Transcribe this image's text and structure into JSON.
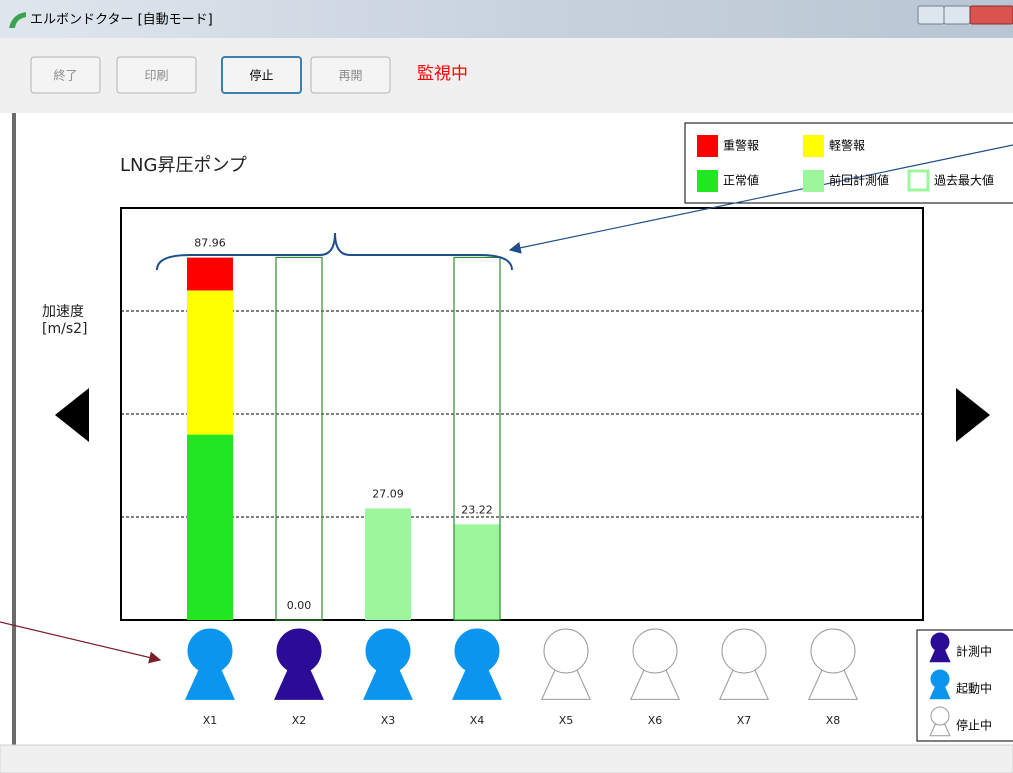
{
  "window": {
    "title": "エルボンドクター [自動モード]"
  },
  "toolbar": {
    "buttons": [
      "終了",
      "印刷",
      "停止",
      "再開"
    ],
    "status": "監視中"
  },
  "sensor_legend": [
    {
      "label": "計測中",
      "color": "#2b0c96"
    },
    {
      "label": "起動中",
      "color": "#0b95ef"
    },
    {
      "label": "停止中",
      "color": "#ffffff"
    }
  ],
  "chart_data": {
    "type": "bar",
    "title": "LNG昇圧ポンプ",
    "y_label": [
      "加速度",
      "[m/s2]"
    ],
    "categories": [
      "X1",
      "X2",
      "X3",
      "X4",
      "X5",
      "X6",
      "X7",
      "X8"
    ],
    "series": [
      {
        "name": "重警報",
        "color": "#ff0000",
        "style": "fill",
        "values": [
          7.96,
          null,
          null,
          null,
          null,
          null,
          null,
          null
        ]
      },
      {
        "name": "軽警報",
        "color": "#ffff00",
        "style": "fill",
        "values": [
          35,
          null,
          null,
          null,
          null,
          null,
          null,
          null
        ]
      },
      {
        "name": "正常値",
        "color": "#22e622",
        "style": "fill",
        "values": [
          45,
          null,
          null,
          null,
          null,
          null,
          null,
          null
        ]
      },
      {
        "name": "前回計測値",
        "color": "#9cf79c",
        "style": "fill",
        "values": [
          null,
          0,
          27.09,
          23.22,
          null,
          null,
          null,
          null
        ],
        "value_labels": [
          null,
          "0.00",
          "27.09",
          "23.22",
          null,
          null,
          null,
          null
        ]
      },
      {
        "name": "過去最大値",
        "color": "#2e8b2e",
        "style": "outline",
        "values": [
          null,
          88,
          null,
          88,
          null,
          null,
          null,
          null
        ]
      }
    ],
    "totals": [
      87.96,
      null,
      null,
      null,
      null,
      null,
      null,
      null
    ],
    "icon_colors": [
      "#0b95ef",
      "#2b0c96",
      "#0b95ef",
      "#0b95ef",
      "#ffffff",
      "#ffffff",
      "#ffffff",
      "#ffffff"
    ],
    "ylim": [
      0,
      100
    ],
    "yticks": [
      25,
      50,
      75
    ],
    "grid": true
  }
}
